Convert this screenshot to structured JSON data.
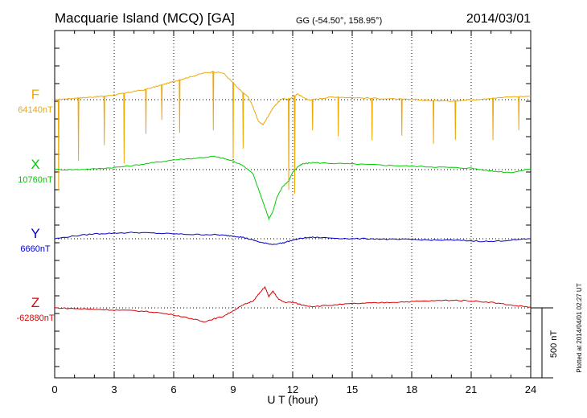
{
  "header": {
    "station": "Macquarie Island (MCQ)  [GA]",
    "coords": "GG (-54.50°, 158.95°)",
    "date": "2014/03/01"
  },
  "footer": {
    "plotted": "Plotted at 2014/04/01 02:27  UT",
    "scale_label": "500 nT"
  },
  "chart_data": {
    "type": "line",
    "title": "Macquarie Island (MCQ)  [GA]",
    "xlabel": "U T (hour)",
    "ylabel": "",
    "xlim": [
      0,
      24
    ],
    "xticks": [
      0,
      3,
      6,
      9,
      12,
      15,
      18,
      21,
      24
    ],
    "xtick_labels": [
      "0",
      "3",
      "6",
      "9",
      "12",
      "15",
      "18",
      "21",
      "24"
    ],
    "scale_bar_nT": 500,
    "grid": true,
    "series": [
      {
        "name": "F",
        "baseline_label": "64140nT",
        "color": "#f0a800",
        "x": [
          0,
          0.5,
          1,
          1.5,
          2,
          2.5,
          3,
          3.5,
          4,
          4.5,
          5,
          5.5,
          6,
          6.5,
          7,
          7.5,
          8,
          8.5,
          9,
          9.25,
          9.5,
          9.75,
          10,
          10.25,
          10.5,
          10.75,
          11,
          11.25,
          11.5,
          11.75,
          12,
          12.25,
          12.5,
          12.75,
          13,
          13.5,
          14,
          15,
          16,
          17,
          18,
          19,
          20,
          21,
          22,
          23,
          24
        ],
        "values": [
          0,
          5,
          10,
          15,
          20,
          25,
          35,
          45,
          60,
          70,
          90,
          110,
          130,
          150,
          170,
          190,
          200,
          190,
          120,
          80,
          50,
          20,
          -50,
          -150,
          -180,
          -120,
          -60,
          -20,
          10,
          0,
          20,
          40,
          20,
          0,
          0,
          10,
          20,
          15,
          10,
          5,
          0,
          -5,
          -10,
          0,
          10,
          20,
          25
        ],
        "spikes": [
          {
            "x": 0.2,
            "depth": 650
          },
          {
            "x": 1.2,
            "depth": 450
          },
          {
            "x": 2.5,
            "depth": 350
          },
          {
            "x": 3.5,
            "depth": 500
          },
          {
            "x": 4.6,
            "depth": 320
          },
          {
            "x": 5.4,
            "depth": 250
          },
          {
            "x": 6.3,
            "depth": 380
          },
          {
            "x": 8.0,
            "depth": 420
          },
          {
            "x": 9.0,
            "depth": 540
          },
          {
            "x": 9.5,
            "depth": 400
          },
          {
            "x": 11.8,
            "depth": 650
          },
          {
            "x": 12.1,
            "depth": 700
          },
          {
            "x": 13.0,
            "depth": 220
          },
          {
            "x": 14.3,
            "depth": 280
          },
          {
            "x": 16.0,
            "depth": 300
          },
          {
            "x": 17.5,
            "depth": 260
          },
          {
            "x": 19.1,
            "depth": 310
          },
          {
            "x": 20.2,
            "depth": 280
          },
          {
            "x": 22.1,
            "depth": 300
          },
          {
            "x": 23.4,
            "depth": 240
          }
        ]
      },
      {
        "name": "X",
        "baseline_label": "10760nT",
        "color": "#00cc00",
        "x": [
          0,
          1,
          2,
          3,
          4,
          5,
          6,
          7,
          8,
          8.5,
          9,
          9.5,
          10,
          10.3,
          10.6,
          10.8,
          11,
          11.2,
          11.5,
          11.8,
          12,
          12.25,
          12.5,
          13,
          14,
          15,
          16,
          17,
          18,
          19,
          20,
          21,
          22,
          23,
          24
        ],
        "values": [
          0,
          0,
          5,
          15,
          30,
          50,
          70,
          80,
          95,
          80,
          60,
          30,
          -30,
          -150,
          -270,
          -350,
          -300,
          -200,
          -120,
          -80,
          -20,
          20,
          40,
          50,
          45,
          40,
          35,
          30,
          25,
          20,
          15,
          10,
          -10,
          -20,
          5
        ],
        "spikes": []
      },
      {
        "name": "Y",
        "baseline_label": "6660nT",
        "color": "#0000cc",
        "x": [
          0,
          1,
          2,
          3,
          4,
          5,
          6,
          7,
          8,
          8.5,
          9,
          9.5,
          10,
          10.5,
          11,
          11.5,
          12,
          12.5,
          13,
          14,
          15,
          16,
          17,
          18,
          19,
          20,
          21,
          22,
          23,
          24
        ],
        "values": [
          0,
          20,
          35,
          40,
          45,
          40,
          35,
          30,
          30,
          25,
          20,
          10,
          -10,
          -30,
          -40,
          -30,
          -10,
          5,
          10,
          5,
          0,
          0,
          -5,
          -5,
          -10,
          -10,
          -15,
          -20,
          -10,
          0
        ],
        "spikes": []
      },
      {
        "name": "Z",
        "baseline_label": "-62880nT",
        "color": "#dd0000",
        "x": [
          0,
          1,
          2,
          3,
          4,
          5,
          6,
          7,
          7.5,
          8,
          8.5,
          9,
          9.5,
          10,
          10.3,
          10.6,
          10.8,
          11,
          11.3,
          11.6,
          12,
          12.5,
          13,
          14,
          15,
          16,
          17,
          18,
          19,
          20,
          21,
          22,
          23,
          24
        ],
        "values": [
          0,
          -5,
          -10,
          -15,
          -20,
          -30,
          -50,
          -80,
          -100,
          -80,
          -60,
          -20,
          20,
          50,
          100,
          150,
          80,
          120,
          60,
          40,
          40,
          20,
          10,
          20,
          30,
          35,
          40,
          45,
          50,
          55,
          50,
          40,
          20,
          5
        ],
        "spikes": []
      }
    ]
  }
}
